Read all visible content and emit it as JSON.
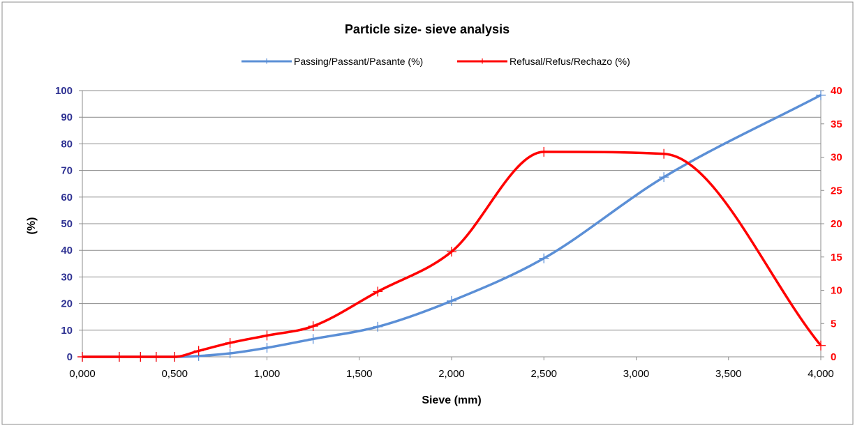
{
  "chart_data": {
    "type": "line",
    "title": "Particle size- sieve analysis",
    "xlabel": "Sieve (mm)",
    "ylabel": "(%)",
    "y2label": "",
    "xlim": [
      0,
      4
    ],
    "ylim": [
      0,
      100
    ],
    "y2lim": [
      0,
      40
    ],
    "grid": true,
    "legend_position": "top",
    "x_ticks": [
      "0,000",
      "0,500",
      "1,000",
      "1,500",
      "2,000",
      "2,500",
      "3,000",
      "3,500",
      "4,000"
    ],
    "y_ticks": [
      "0",
      "10",
      "20",
      "30",
      "40",
      "50",
      "60",
      "70",
      "80",
      "90",
      "100"
    ],
    "y2_ticks": [
      "0",
      "5",
      "10",
      "15",
      "20",
      "25",
      "30",
      "35",
      "40"
    ],
    "x_values": [
      0,
      0.2,
      0.315,
      0.4,
      0.5,
      0.63,
      0.8,
      1.0,
      1.25,
      1.6,
      2.0,
      2.5,
      3.15,
      4.0
    ],
    "series": [
      {
        "name": "Passing/Passant/Pasante (%)",
        "axis": "left",
        "color": "#5B8FD6",
        "values": [
          0,
          0,
          0,
          0,
          0,
          0.3,
          1.3,
          3.4,
          6.7,
          11.3,
          21,
          37,
          67.5,
          98.3
        ]
      },
      {
        "name": "Refusal/Refus/Rechazo (%)",
        "axis": "right",
        "color": "#FF0000",
        "values": [
          0,
          0,
          0,
          0,
          0,
          0.9,
          2.1,
          3.2,
          4.6,
          9.8,
          15.8,
          30.8,
          30.5,
          1.7
        ]
      }
    ],
    "colors": {
      "left_axis_labels": "#2E3192",
      "right_axis_labels": "#FF0000",
      "grid": "#8C8C8C"
    }
  }
}
